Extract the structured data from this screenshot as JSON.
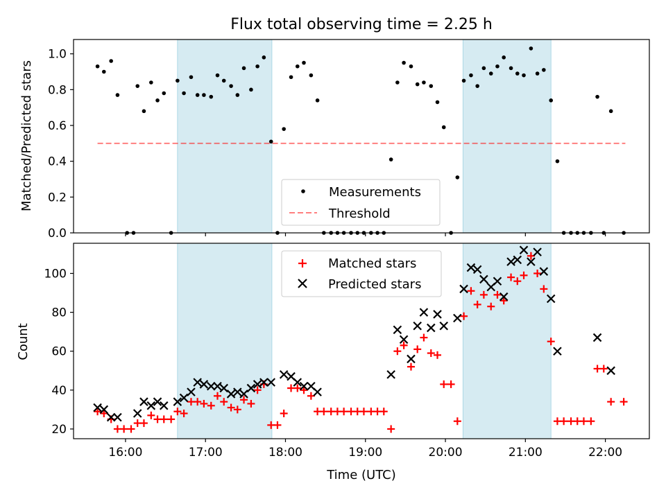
{
  "figure": {
    "title": "Flux total observing time = 2.25 h"
  },
  "colors": {
    "shade": "#add8e6",
    "measurement": "#000000",
    "threshold": "#ff0000",
    "matched": "#ff0000",
    "predicted": "#000000"
  },
  "chart_data": [
    {
      "type": "scatter",
      "title": "Flux total observing time = 2.25 h",
      "xlabel": "",
      "ylabel": "Matched/Predicted stars",
      "x_unit": "UTC time (hours)",
      "xlim": [
        15.35,
        22.55
      ],
      "ylim": [
        0.0,
        1.08
      ],
      "yticks": [
        0.0,
        0.2,
        0.4,
        0.6,
        0.8,
        1.0
      ],
      "ytick_labels": [
        "0.0",
        "0.2",
        "0.4",
        "0.6",
        "0.8",
        "1.0"
      ],
      "grid": false,
      "legend": {
        "placement": "lower-center",
        "entries": [
          "Measurements",
          "Threshold"
        ]
      },
      "shaded_spans": [
        [
          16.65,
          17.83
        ],
        [
          20.22,
          21.32
        ]
      ],
      "threshold": {
        "name": "Threshold",
        "y": 0.5,
        "x": [
          15.65,
          22.25
        ],
        "style": "dashed"
      },
      "series": [
        {
          "name": "Measurements",
          "points": [
            [
              15.65,
              0.93
            ],
            [
              15.73,
              0.9
            ],
            [
              15.82,
              0.96
            ],
            [
              15.9,
              0.77
            ],
            [
              16.02,
              0.0
            ],
            [
              16.1,
              0.0
            ],
            [
              16.15,
              0.82
            ],
            [
              16.23,
              0.68
            ],
            [
              16.32,
              0.84
            ],
            [
              16.4,
              0.74
            ],
            [
              16.48,
              0.78
            ],
            [
              16.57,
              0.0
            ],
            [
              16.65,
              0.85
            ],
            [
              16.73,
              0.78
            ],
            [
              16.82,
              0.87
            ],
            [
              16.9,
              0.77
            ],
            [
              16.98,
              0.77
            ],
            [
              17.07,
              0.76
            ],
            [
              17.15,
              0.88
            ],
            [
              17.23,
              0.85
            ],
            [
              17.32,
              0.82
            ],
            [
              17.4,
              0.77
            ],
            [
              17.48,
              0.92
            ],
            [
              17.57,
              0.8
            ],
            [
              17.65,
              0.93
            ],
            [
              17.73,
              0.98
            ],
            [
              17.82,
              0.51
            ],
            [
              17.9,
              0.0
            ],
            [
              17.98,
              0.58
            ],
            [
              18.07,
              0.87
            ],
            [
              18.15,
              0.93
            ],
            [
              18.23,
              0.95
            ],
            [
              18.32,
              0.88
            ],
            [
              18.4,
              0.74
            ],
            [
              18.48,
              0.0
            ],
            [
              18.57,
              0.0
            ],
            [
              18.65,
              0.0
            ],
            [
              18.73,
              0.0
            ],
            [
              18.82,
              0.0
            ],
            [
              18.9,
              0.0
            ],
            [
              18.98,
              0.0
            ],
            [
              19.07,
              0.0
            ],
            [
              19.15,
              0.0
            ],
            [
              19.23,
              0.0
            ],
            [
              19.32,
              0.41
            ],
            [
              19.4,
              0.84
            ],
            [
              19.48,
              0.95
            ],
            [
              19.57,
              0.93
            ],
            [
              19.65,
              0.83
            ],
            [
              19.73,
              0.84
            ],
            [
              19.82,
              0.82
            ],
            [
              19.9,
              0.73
            ],
            [
              19.98,
              0.59
            ],
            [
              20.07,
              0.0
            ],
            [
              20.15,
              0.31
            ],
            [
              20.23,
              0.85
            ],
            [
              20.32,
              0.88
            ],
            [
              20.4,
              0.82
            ],
            [
              20.48,
              0.92
            ],
            [
              20.57,
              0.89
            ],
            [
              20.65,
              0.93
            ],
            [
              20.73,
              0.98
            ],
            [
              20.82,
              0.92
            ],
            [
              20.9,
              0.89
            ],
            [
              20.98,
              0.88
            ],
            [
              21.07,
              1.03
            ],
            [
              21.15,
              0.89
            ],
            [
              21.23,
              0.91
            ],
            [
              21.32,
              0.74
            ],
            [
              21.4,
              0.4
            ],
            [
              21.48,
              0.0
            ],
            [
              21.57,
              0.0
            ],
            [
              21.65,
              0.0
            ],
            [
              21.73,
              0.0
            ],
            [
              21.82,
              0.0
            ],
            [
              21.9,
              0.76
            ],
            [
              21.98,
              0.0
            ],
            [
              22.07,
              0.68
            ],
            [
              22.23,
              0.0
            ]
          ]
        }
      ]
    },
    {
      "type": "scatter",
      "title": "",
      "xlabel": "Time (UTC)",
      "ylabel": "Count",
      "x_unit": "UTC time (hours)",
      "xlim": [
        15.35,
        22.55
      ],
      "ylim": [
        15,
        115.5
      ],
      "yticks": [
        20,
        40,
        60,
        80,
        100
      ],
      "ytick_labels": [
        "20",
        "40",
        "60",
        "80",
        "100"
      ],
      "xticks": [
        16,
        17,
        18,
        19,
        20,
        21,
        22
      ],
      "xtick_labels": [
        "16:00",
        "17:00",
        "18:00",
        "19:00",
        "20:00",
        "21:00",
        "22:00"
      ],
      "grid": false,
      "legend": {
        "placement": "top-center",
        "entries": [
          "Matched stars",
          "Predicted stars"
        ]
      },
      "shaded_spans": [
        [
          16.65,
          17.83
        ],
        [
          20.22,
          21.32
        ]
      ],
      "series": [
        {
          "name": "Matched stars",
          "marker": "plus",
          "points": [
            [
              15.65,
              29
            ],
            [
              15.73,
              28
            ],
            [
              15.82,
              25
            ],
            [
              15.9,
              20
            ],
            [
              15.98,
              20
            ],
            [
              16.07,
              20
            ],
            [
              16.15,
              23
            ],
            [
              16.23,
              23
            ],
            [
              16.32,
              27
            ],
            [
              16.4,
              25
            ],
            [
              16.48,
              25
            ],
            [
              16.57,
              25
            ],
            [
              16.65,
              29
            ],
            [
              16.73,
              28
            ],
            [
              16.82,
              34
            ],
            [
              16.9,
              34
            ],
            [
              16.98,
              33
            ],
            [
              17.07,
              32
            ],
            [
              17.15,
              37
            ],
            [
              17.23,
              34
            ],
            [
              17.32,
              31
            ],
            [
              17.4,
              30
            ],
            [
              17.48,
              35
            ],
            [
              17.57,
              33
            ],
            [
              17.65,
              40
            ],
            [
              17.73,
              43
            ],
            [
              17.82,
              22
            ],
            [
              17.9,
              22
            ],
            [
              17.98,
              28
            ],
            [
              18.07,
              41
            ],
            [
              18.15,
              41
            ],
            [
              18.23,
              40
            ],
            [
              18.32,
              37
            ],
            [
              18.4,
              29
            ],
            [
              18.48,
              29
            ],
            [
              18.57,
              29
            ],
            [
              18.65,
              29
            ],
            [
              18.73,
              29
            ],
            [
              18.82,
              29
            ],
            [
              18.9,
              29
            ],
            [
              18.98,
              29
            ],
            [
              19.07,
              29
            ],
            [
              19.15,
              29
            ],
            [
              19.23,
              29
            ],
            [
              19.32,
              20
            ],
            [
              19.4,
              60
            ],
            [
              19.48,
              63
            ],
            [
              19.57,
              52
            ],
            [
              19.65,
              61
            ],
            [
              19.73,
              67
            ],
            [
              19.82,
              59
            ],
            [
              19.9,
              58
            ],
            [
              19.98,
              43
            ],
            [
              20.07,
              43
            ],
            [
              20.15,
              24
            ],
            [
              20.23,
              78
            ],
            [
              20.32,
              91
            ],
            [
              20.4,
              84
            ],
            [
              20.48,
              89
            ],
            [
              20.57,
              83
            ],
            [
              20.65,
              89
            ],
            [
              20.73,
              86
            ],
            [
              20.82,
              98
            ],
            [
              20.9,
              96
            ],
            [
              20.98,
              99
            ],
            [
              21.07,
              109
            ],
            [
              21.15,
              100
            ],
            [
              21.23,
              92
            ],
            [
              21.32,
              65
            ],
            [
              21.4,
              24
            ],
            [
              21.48,
              24
            ],
            [
              21.57,
              24
            ],
            [
              21.65,
              24
            ],
            [
              21.73,
              24
            ],
            [
              21.82,
              24
            ],
            [
              21.9,
              51
            ],
            [
              21.98,
              51
            ],
            [
              22.07,
              34
            ],
            [
              22.23,
              34
            ]
          ]
        },
        {
          "name": "Predicted stars",
          "marker": "x",
          "points": [
            [
              15.65,
              31
            ],
            [
              15.73,
              30
            ],
            [
              15.82,
              26
            ],
            [
              15.9,
              26
            ],
            [
              16.15,
              28
            ],
            [
              16.23,
              34
            ],
            [
              16.32,
              32
            ],
            [
              16.4,
              34
            ],
            [
              16.48,
              32
            ],
            [
              16.65,
              34
            ],
            [
              16.73,
              36
            ],
            [
              16.82,
              39
            ],
            [
              16.9,
              44
            ],
            [
              16.98,
              43
            ],
            [
              17.07,
              42
            ],
            [
              17.15,
              42
            ],
            [
              17.23,
              41
            ],
            [
              17.32,
              38
            ],
            [
              17.4,
              39
            ],
            [
              17.48,
              38
            ],
            [
              17.57,
              41
            ],
            [
              17.65,
              43
            ],
            [
              17.73,
              44
            ],
            [
              17.82,
              44
            ],
            [
              17.98,
              48
            ],
            [
              18.07,
              47
            ],
            [
              18.15,
              44
            ],
            [
              18.23,
              42
            ],
            [
              18.32,
              42
            ],
            [
              18.4,
              39
            ],
            [
              19.32,
              48
            ],
            [
              19.4,
              71
            ],
            [
              19.48,
              66
            ],
            [
              19.57,
              56
            ],
            [
              19.65,
              73
            ],
            [
              19.73,
              80
            ],
            [
              19.82,
              72
            ],
            [
              19.9,
              79
            ],
            [
              19.98,
              73
            ],
            [
              20.15,
              77
            ],
            [
              20.23,
              92
            ],
            [
              20.32,
              103
            ],
            [
              20.4,
              102
            ],
            [
              20.48,
              97
            ],
            [
              20.57,
              93
            ],
            [
              20.65,
              96
            ],
            [
              20.73,
              88
            ],
            [
              20.82,
              106
            ],
            [
              20.9,
              107
            ],
            [
              20.98,
              112
            ],
            [
              21.07,
              106
            ],
            [
              21.15,
              111
            ],
            [
              21.23,
              101
            ],
            [
              21.32,
              87
            ],
            [
              21.4,
              60
            ],
            [
              21.9,
              67
            ],
            [
              22.07,
              50
            ]
          ]
        }
      ]
    }
  ]
}
